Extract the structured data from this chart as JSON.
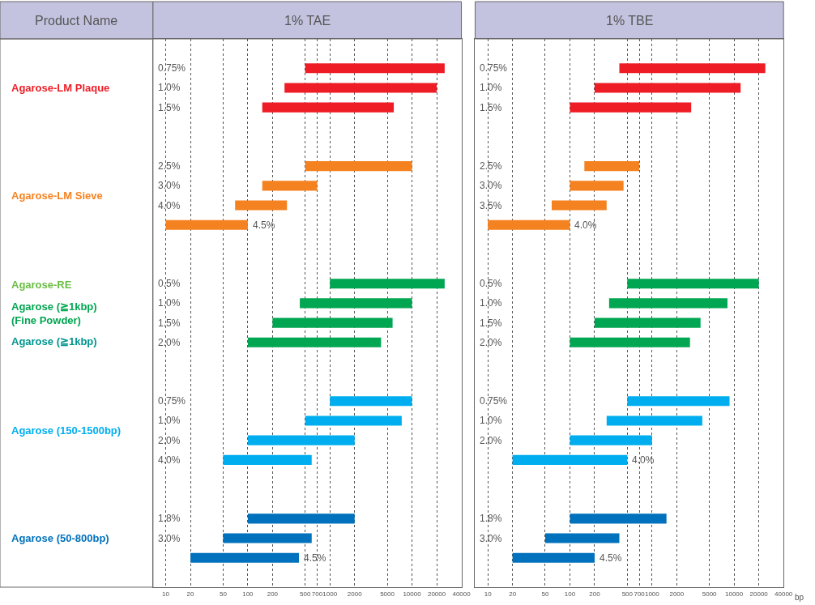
{
  "chart_data": [
    {
      "type": "other",
      "title": "Product Name",
      "annotations": [
        "Agarose-LM Plaque",
        "Agarose-LM Sieve",
        "Agarose-RE",
        "Agarose (≧1kbp)\n(Fine Powder)",
        "Agarose (≧1kbp)",
        "Agarose (150-1500bp)",
        "Agarose (50-800bp)"
      ],
      "colors": [
        "#ee1c25",
        "#f58220",
        "#6abd45",
        "#00a651",
        "#00958f",
        "#00aeef",
        "#0071bc"
      ]
    },
    {
      "type": "bar",
      "orientation": "horizontal",
      "title": "1% TAE",
      "grid": "x",
      "log": "x",
      "categories": [
        null,
        "0.75%",
        "1.0%",
        "1.5%",
        null,
        null,
        "2.5%",
        "3.0%",
        "4.0%",
        "4.5%",
        null,
        null,
        "0.5%",
        "1.0%",
        "1.5%",
        "2.0%",
        null,
        null,
        "0.75%",
        "1.0%",
        "2.0%",
        "4.0%",
        null,
        null,
        "1.8%",
        "3.0%",
        "4.5%",
        null
      ],
      "base": [
        null,
        500,
        280,
        150,
        null,
        null,
        500,
        150,
        70,
        10,
        null,
        null,
        1000,
        430,
        200,
        100,
        null,
        null,
        1000,
        500,
        100,
        50,
        null,
        null,
        100,
        50,
        20,
        null
      ],
      "values": [
        null,
        24500,
        19720,
        5850,
        null,
        null,
        9500,
        550,
        230,
        90,
        null,
        null,
        24000,
        9570,
        5600,
        4100,
        null,
        null,
        9000,
        7000,
        1900,
        550,
        null,
        null,
        1900,
        550,
        400,
        null
      ],
      "colors": [
        null,
        "#ee1c25",
        "#ee1c25",
        "#ee1c25",
        null,
        null,
        "#f58220",
        "#f58220",
        "#f58220",
        "#f58220",
        null,
        null,
        "#00a651",
        "#00a651",
        "#00a651",
        "#00a651",
        null,
        null,
        "#00aeef",
        "#00aeef",
        "#00aeef",
        "#00aeef",
        null,
        null,
        "#0071bc",
        "#0071bc",
        "#0071bc",
        null
      ],
      "xlim": [
        7,
        40000
      ],
      "xticks": [
        10,
        20,
        50,
        100,
        200,
        500,
        700,
        1000,
        2000,
        5000,
        10000,
        20000,
        40000
      ]
    },
    {
      "type": "bar",
      "orientation": "horizontal",
      "title": "1% TBE",
      "xlabel": "bp",
      "grid": "x",
      "log": "x",
      "categories": [
        null,
        "0.75%",
        "1.0%",
        "1.5%",
        null,
        null,
        "2.5%",
        "3.0%",
        "3.5%",
        "4.0%",
        null,
        null,
        "0.5%",
        "1.0%",
        "1.5%",
        "2.0%",
        null,
        null,
        "0.75%",
        "1.0%",
        "2.0%",
        "4.0%",
        null,
        null,
        "1.8%",
        "3.0%",
        "4.5%",
        null
      ],
      "base": [
        null,
        400,
        200,
        100,
        null,
        null,
        150,
        100,
        60,
        10,
        null,
        null,
        500,
        300,
        200,
        100,
        null,
        null,
        500,
        280,
        100,
        20,
        null,
        null,
        100,
        50,
        20,
        null
      ],
      "values": [
        null,
        23600,
        11800,
        2900,
        null,
        null,
        550,
        350,
        220,
        90,
        null,
        null,
        19500,
        8000,
        3700,
        2800,
        null,
        null,
        8300,
        3820,
        900,
        480,
        null,
        null,
        1400,
        350,
        180,
        null
      ],
      "colors": [
        null,
        "#ee1c25",
        "#ee1c25",
        "#ee1c25",
        null,
        null,
        "#f58220",
        "#f58220",
        "#f58220",
        "#f58220",
        null,
        null,
        "#00a651",
        "#00a651",
        "#00a651",
        "#00a651",
        null,
        null,
        "#00aeef",
        "#00aeef",
        "#00aeef",
        "#00aeef",
        null,
        null,
        "#0071bc",
        "#0071bc",
        "#0071bc",
        null
      ],
      "xlim": [
        7,
        40000
      ],
      "xticks": [
        10,
        20,
        50,
        100,
        200,
        500,
        700,
        1000,
        2000,
        5000,
        10000,
        20000,
        40000
      ]
    }
  ]
}
